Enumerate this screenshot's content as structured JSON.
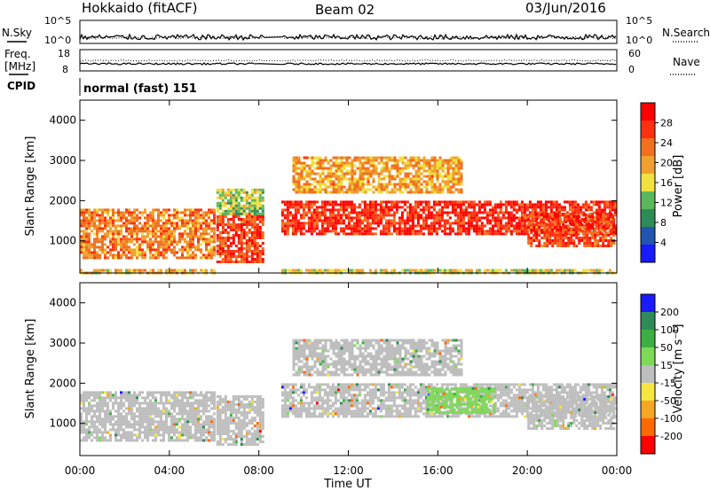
{
  "header": {
    "radar": "Hokkaido (fitACF)",
    "beam": "Beam 02",
    "date": "03/Jun/2016"
  },
  "status_panels": {
    "nsky_label": "N.Sky",
    "nsearch_label": "N.Search",
    "freq_label_line1": "Freq.",
    "freq_label_line2": "[MHz]",
    "nave_label": "Nave",
    "cpid_label": "CPID",
    "cpid_text": "normal (fast) 151",
    "noise_ticks": [
      "10^5",
      "10^0"
    ],
    "noise_ticks_right": [
      "10^5",
      "10^0"
    ],
    "freq_ticks": [
      "18",
      "8"
    ],
    "nave_ticks": [
      "60",
      "0"
    ]
  },
  "axes": {
    "slant_range_label": "Slant Range [km]",
    "time_label": "Time UT",
    "time_ticks": [
      "00:00",
      "04:00",
      "08:00",
      "12:00",
      "16:00",
      "20:00",
      "00:00"
    ],
    "range_ticks": [
      "1000",
      "2000",
      "3000",
      "4000"
    ]
  },
  "colorbars": {
    "power": {
      "label": "Power [dB]",
      "ticks": [
        "4",
        "8",
        "12",
        "16",
        "20",
        "24",
        "28"
      ],
      "colors": [
        "#1a1aff",
        "#2255b0",
        "#2e8b57",
        "#5cb85c",
        "#f0e040",
        "#f0a030",
        "#f07020",
        "#ff3010",
        "#ff0000"
      ]
    },
    "velocity": {
      "label": "Velocity [m s⁻¹]",
      "ticks": [
        "200",
        "100",
        "50",
        "15",
        "-15",
        "-50",
        "-100",
        "-200"
      ],
      "colors": [
        "#1a1aff",
        "#2e8b57",
        "#3cb043",
        "#7ed957",
        "#bebebe",
        "#f5e642",
        "#f5a623",
        "#ff6a00",
        "#ff0000"
      ]
    }
  },
  "chart_data": [
    {
      "type": "heatmap",
      "title": "Power",
      "ylabel": "Slant Range [km]",
      "xlabel": "",
      "xlim": [
        0,
        24
      ],
      "ylim": [
        200,
        4500
      ],
      "value_label": "Power [dB]",
      "bands": [
        {
          "t0": 0.0,
          "t1": 6.0,
          "r0": 600,
          "r1": 1800,
          "value": 22
        },
        {
          "t0": 0.0,
          "t1": 6.0,
          "r0": 200,
          "r1": 300,
          "value": 18
        },
        {
          "t0": 6.1,
          "t1": 8.2,
          "r0": 500,
          "r1": 1700,
          "value": 26
        },
        {
          "t0": 6.1,
          "t1": 8.2,
          "r0": 1700,
          "r1": 2300,
          "value": 14
        },
        {
          "t0": 9.0,
          "t1": 23.9,
          "r0": 1200,
          "r1": 2000,
          "value": 28
        },
        {
          "t0": 9.5,
          "t1": 17.0,
          "r0": 2200,
          "r1": 3100,
          "value": 20
        },
        {
          "t0": 9.0,
          "t1": 23.9,
          "r0": 200,
          "r1": 300,
          "value": 16
        },
        {
          "t0": 20.0,
          "t1": 23.9,
          "r0": 900,
          "r1": 1700,
          "value": 26
        }
      ]
    },
    {
      "type": "heatmap",
      "title": "Velocity",
      "ylabel": "Slant Range [km]",
      "xlabel": "Time UT",
      "xlim": [
        0,
        24
      ],
      "ylim": [
        200,
        4500
      ],
      "value_label": "Velocity [m s-1]",
      "bands": [
        {
          "t0": 0.0,
          "t1": 6.0,
          "r0": 600,
          "r1": 1800,
          "value": 0
        },
        {
          "t0": 6.1,
          "t1": 8.2,
          "r0": 500,
          "r1": 1700,
          "value": 0
        },
        {
          "t0": 9.0,
          "t1": 23.9,
          "r0": 1200,
          "r1": 2000,
          "value": 0
        },
        {
          "t0": 15.5,
          "t1": 18.5,
          "r0": 1300,
          "r1": 1900,
          "value": 40
        },
        {
          "t0": 9.5,
          "t1": 17.0,
          "r0": 2200,
          "r1": 3100,
          "value": 0
        },
        {
          "t0": 20.0,
          "t1": 23.9,
          "r0": 900,
          "r1": 1700,
          "value": 0
        }
      ]
    }
  ]
}
